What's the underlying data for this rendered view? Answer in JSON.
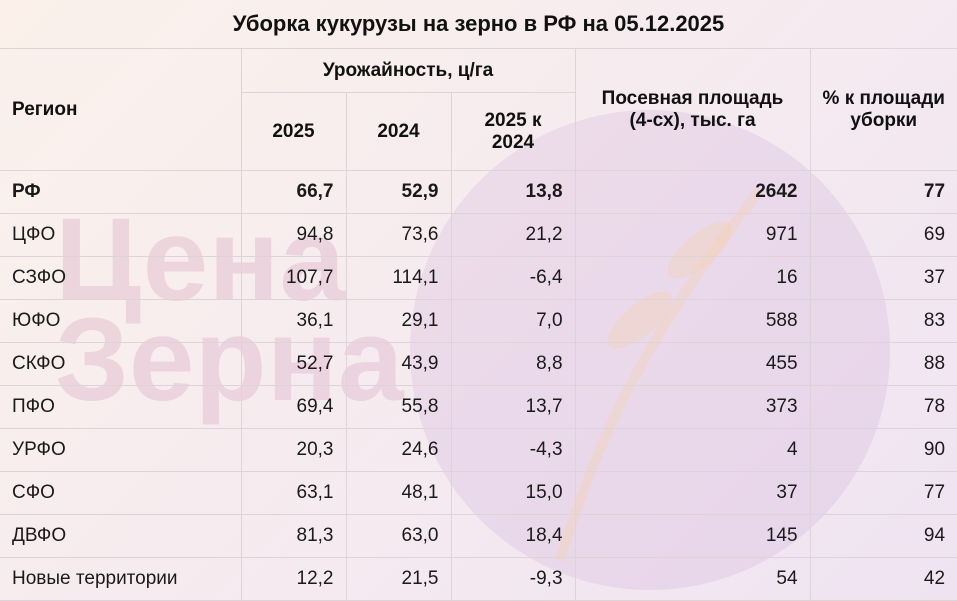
{
  "title": "Уборка кукурузы на зерно в РФ на 05.12.2025",
  "watermark": {
    "line1": "Цена",
    "line2": "Зерна",
    "color": "#d9a7c2"
  },
  "headers": {
    "region": "Регион",
    "yield_group": "Урожайность, ц/га",
    "y2025": "2025",
    "y2024": "2024",
    "diff": "2025 к 2024",
    "area": "Посевная площадь (4-сх), тыс. га",
    "pct": "% к площади уборки"
  },
  "rows": [
    {
      "region": "РФ",
      "y2025": "66,7",
      "y2024": "52,9",
      "diff": "13,8",
      "area": "2642",
      "pct": "77"
    },
    {
      "region": "ЦФО",
      "y2025": "94,8",
      "y2024": "73,6",
      "diff": "21,2",
      "area": "971",
      "pct": "69"
    },
    {
      "region": "СЗФО",
      "y2025": "107,7",
      "y2024": "114,1",
      "diff": "-6,4",
      "area": "16",
      "pct": "37"
    },
    {
      "region": "ЮФО",
      "y2025": "36,1",
      "y2024": "29,1",
      "diff": "7,0",
      "area": "588",
      "pct": "83"
    },
    {
      "region": "СКФО",
      "y2025": "52,7",
      "y2024": "43,9",
      "diff": "8,8",
      "area": "455",
      "pct": "88"
    },
    {
      "region": "ПФО",
      "y2025": "69,4",
      "y2024": "55,8",
      "diff": "13,7",
      "area": "373",
      "pct": "78"
    },
    {
      "region": "УРФО",
      "y2025": "20,3",
      "y2024": "24,6",
      "diff": "-4,3",
      "area": "4",
      "pct": "90"
    },
    {
      "region": "СФО",
      "y2025": "63,1",
      "y2024": "48,1",
      "diff": "15,0",
      "area": "37",
      "pct": "77"
    },
    {
      "region": "ДВФО",
      "y2025": "81,3",
      "y2024": "63,0",
      "diff": "18,4",
      "area": "145",
      "pct": "94"
    },
    {
      "region": "Новые территории",
      "y2025": "12,2",
      "y2024": "21,5",
      "diff": "-9,3",
      "area": "54",
      "pct": "42"
    }
  ]
}
